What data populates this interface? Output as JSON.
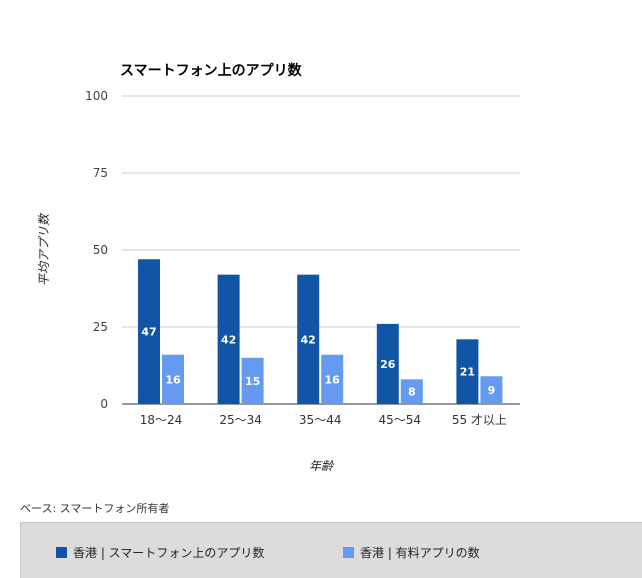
{
  "colors": {
    "series1": "#1155a6",
    "series2": "#6699f0",
    "grid": "#cccccc",
    "axis": "#333333"
  },
  "base_note": "ベース: スマートフォン所有者",
  "chart_data": {
    "type": "bar",
    "title": "スマートフォン上のアプリ数",
    "xlabel": "年齢",
    "ylabel": "平均アプリ数",
    "categories": [
      "18～24",
      "25～34",
      "35～44",
      "45～54",
      "55 才以上"
    ],
    "ylim": [
      0,
      100
    ],
    "yticks": [
      "0",
      "25",
      "50",
      "75",
      "100"
    ],
    "grid": true,
    "legend_position": "bottom",
    "series": [
      {
        "name": "香港 | スマートフォン上のアプリ数",
        "values": [
          47,
          42,
          42,
          26,
          21
        ],
        "labels": [
          "47",
          "42",
          "42",
          "26",
          "21"
        ]
      },
      {
        "name": "香港 | 有料アプリの数",
        "values": [
          16,
          15,
          16,
          8,
          9
        ],
        "labels": [
          "16",
          "15",
          "16",
          "8",
          "9"
        ]
      }
    ]
  }
}
